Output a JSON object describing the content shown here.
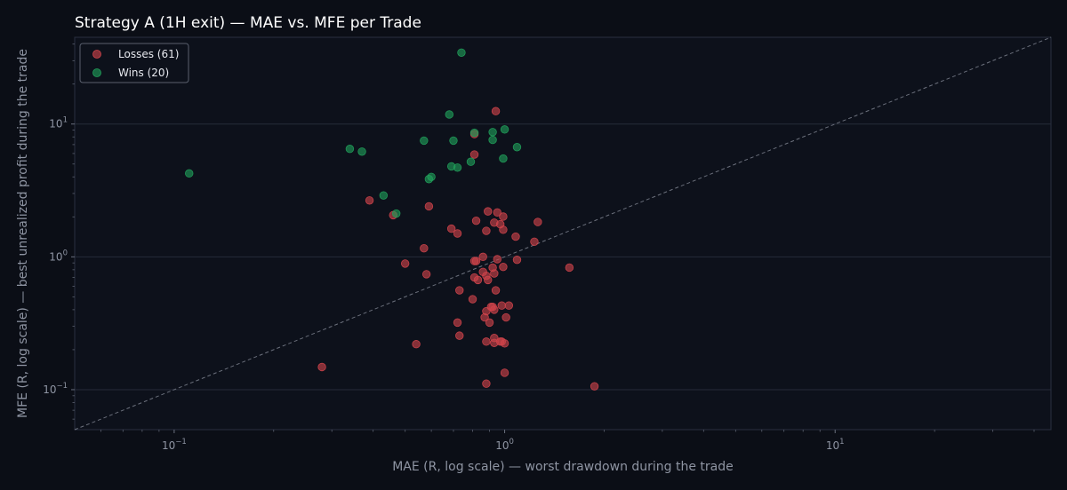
{
  "chart_data": {
    "type": "scatter",
    "title": "Strategy A (1H exit) — MAE vs. MFE per Trade",
    "xlabel": "MAE (R, log scale) — worst drawdown during the trade",
    "ylabel": "MFE (R, log scale) — best unrealized profit during the trade",
    "xscale": "log",
    "yscale": "log",
    "xlim": [
      0.05,
      45
    ],
    "ylim": [
      0.05,
      45
    ],
    "x_ticks": [
      {
        "base": "10",
        "exp": "−1",
        "value": 0.1
      },
      {
        "base": "10",
        "exp": "0",
        "value": 1
      },
      {
        "base": "10",
        "exp": "1",
        "value": 10
      }
    ],
    "y_ticks": [
      {
        "base": "10",
        "exp": "−1",
        "value": 0.1
      },
      {
        "base": "10",
        "exp": "0",
        "value": 1
      },
      {
        "base": "10",
        "exp": "1",
        "value": 10
      }
    ],
    "grid": "horizontal",
    "diagonal": "y = x (dashed)",
    "legend_position": "top-left",
    "series": [
      {
        "name": "Losses (61)",
        "color": "#d0444b",
        "points": [
          [
            0.94,
            12.5
          ],
          [
            0.81,
            8.4
          ],
          [
            0.81,
            5.9
          ],
          [
            0.39,
            2.66
          ],
          [
            0.59,
            2.4
          ],
          [
            0.46,
            2.06
          ],
          [
            0.89,
            2.2
          ],
          [
            0.95,
            2.16
          ],
          [
            0.99,
            2.01
          ],
          [
            0.82,
            1.87
          ],
          [
            0.93,
            1.81
          ],
          [
            0.97,
            1.76
          ],
          [
            1.26,
            1.83
          ],
          [
            0.69,
            1.63
          ],
          [
            0.72,
            1.5
          ],
          [
            0.88,
            1.57
          ],
          [
            0.99,
            1.6
          ],
          [
            1.08,
            1.42
          ],
          [
            1.23,
            1.3
          ],
          [
            0.57,
            1.16
          ],
          [
            0.86,
            1.0
          ],
          [
            0.81,
            0.93
          ],
          [
            0.95,
            0.96
          ],
          [
            1.09,
            0.95
          ],
          [
            0.5,
            0.89
          ],
          [
            0.92,
            0.83
          ],
          [
            0.99,
            0.84
          ],
          [
            1.57,
            0.83
          ],
          [
            0.86,
            0.77
          ],
          [
            0.58,
            0.74
          ],
          [
            0.81,
            0.7
          ],
          [
            0.88,
            0.72
          ],
          [
            0.93,
            0.75
          ],
          [
            0.83,
            0.67
          ],
          [
            0.89,
            0.67
          ],
          [
            0.73,
            0.56
          ],
          [
            0.94,
            0.56
          ],
          [
            0.8,
            0.48
          ],
          [
            0.98,
            0.43
          ],
          [
            1.03,
            0.43
          ],
          [
            0.92,
            0.42
          ],
          [
            0.88,
            0.39
          ],
          [
            0.93,
            0.4
          ],
          [
            0.87,
            0.35
          ],
          [
            1.01,
            0.35
          ],
          [
            0.72,
            0.32
          ],
          [
            0.9,
            0.32
          ],
          [
            0.73,
            0.255
          ],
          [
            0.93,
            0.245
          ],
          [
            0.88,
            0.23
          ],
          [
            0.93,
            0.225
          ],
          [
            0.97,
            0.23
          ],
          [
            1.0,
            0.223
          ],
          [
            0.54,
            0.22
          ],
          [
            0.28,
            0.148
          ],
          [
            1.0,
            0.134
          ],
          [
            0.88,
            0.111
          ],
          [
            1.87,
            0.106
          ],
          [
            0.98,
            0.23
          ],
          [
            0.91,
            0.42
          ],
          [
            0.82,
            0.93
          ]
        ]
      },
      {
        "name": "Wins (20)",
        "color": "#21a05a",
        "points": [
          [
            0.74,
            34.5
          ],
          [
            0.68,
            11.8
          ],
          [
            0.81,
            8.6
          ],
          [
            0.92,
            8.7
          ],
          [
            1.0,
            9.1
          ],
          [
            0.57,
            7.5
          ],
          [
            0.7,
            7.5
          ],
          [
            0.92,
            7.6
          ],
          [
            1.09,
            6.7
          ],
          [
            0.34,
            6.5
          ],
          [
            0.37,
            6.2
          ],
          [
            0.99,
            5.5
          ],
          [
            0.79,
            5.2
          ],
          [
            0.69,
            4.8
          ],
          [
            0.72,
            4.7
          ],
          [
            0.111,
            4.25
          ],
          [
            0.6,
            4.0
          ],
          [
            0.59,
            3.85
          ],
          [
            0.43,
            2.9
          ],
          [
            0.47,
            2.12
          ]
        ]
      }
    ]
  }
}
